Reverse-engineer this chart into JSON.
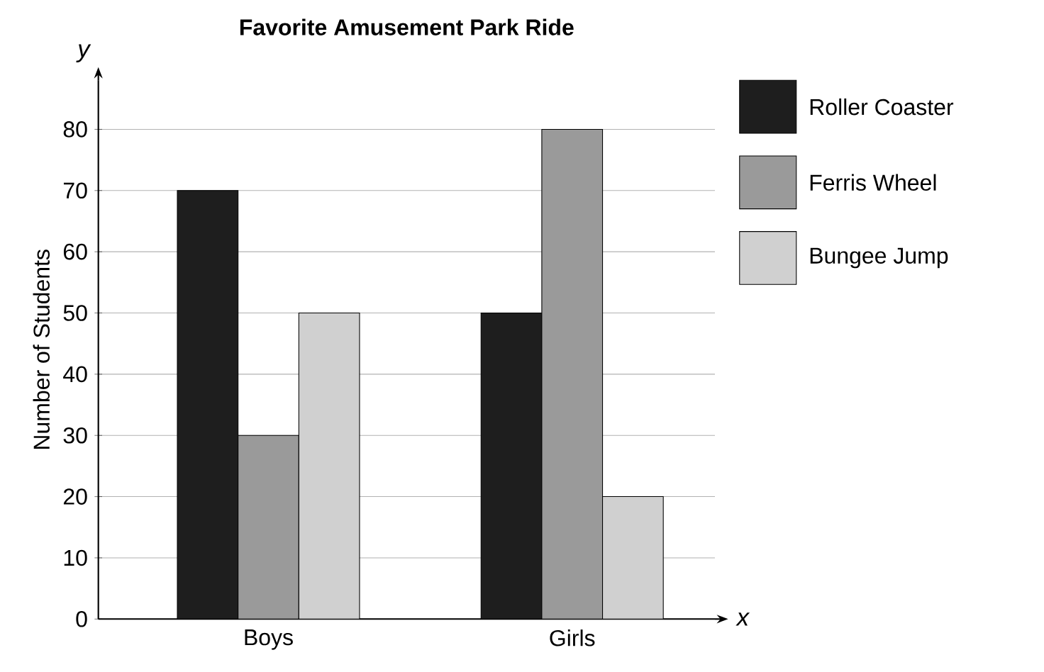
{
  "chart_data": {
    "type": "bar",
    "title": "Favorite Amusement Park Ride",
    "ylabel": "Number of Students",
    "annotations": [
      "y",
      "x"
    ],
    "categories": [
      "Boys",
      "Girls"
    ],
    "series": [
      {
        "name": "Roller Coaster",
        "color": "#1e1e1e",
        "values": [
          70,
          50
        ]
      },
      {
        "name": "Ferris Wheel",
        "color": "#9a9a9a",
        "values": [
          30,
          80
        ]
      },
      {
        "name": "Bungee Jump",
        "color": "#d0d0d0",
        "values": [
          50,
          20
        ]
      }
    ],
    "ylim": [
      0,
      88
    ],
    "yticks": [
      0,
      10,
      20,
      30,
      40,
      50,
      60,
      70,
      80
    ],
    "grid": "y",
    "legend": "right"
  }
}
